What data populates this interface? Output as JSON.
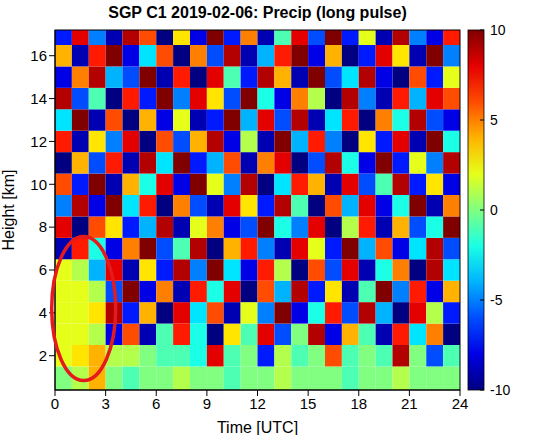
{
  "chart_data": {
    "type": "heatmap",
    "title": "SGP C1 2019-02-06: Precip (long pulse)",
    "x_label": "Time [UTC]",
    "y_label": "Height [km]",
    "xlim": [
      0,
      24
    ],
    "xticks": [
      0,
      3,
      6,
      9,
      12,
      15,
      18,
      21,
      24
    ],
    "ylim": [
      0.4,
      17.2
    ],
    "yticks": [
      2,
      4,
      6,
      8,
      10,
      12,
      14,
      16
    ],
    "cells": {
      "x_edges": [
        0,
        1,
        2,
        3,
        4,
        5,
        6,
        7,
        8,
        9,
        10,
        11,
        12,
        13,
        14,
        15,
        16,
        17,
        18,
        19,
        20,
        21,
        22,
        23,
        24
      ],
      "y_edges": [
        0.4,
        1.5,
        2.5,
        3.5,
        4.5,
        5.5,
        6.5,
        7.5,
        8.5,
        9.5,
        10.5,
        11.5,
        12.5,
        13.5,
        14.5,
        15.5,
        16.5,
        17.2
      ],
      "values": [
        [
          0,
          1,
          4,
          0,
          -1,
          0,
          0,
          1,
          0,
          0,
          -1,
          0,
          0,
          1,
          0,
          0,
          0,
          -1,
          0,
          0,
          1,
          0,
          0,
          0
        ],
        [
          2,
          3,
          4,
          1,
          1,
          0,
          -1,
          -1,
          -2,
          8,
          -1,
          0,
          -7,
          1,
          -1,
          0,
          6,
          -1,
          0,
          -1,
          9,
          0,
          -6,
          -1
        ],
        [
          2,
          2,
          1,
          -8,
          6,
          -9,
          -1,
          7,
          -2,
          -10,
          3,
          -1,
          8,
          -6,
          0,
          9,
          -8,
          4,
          -1,
          -9,
          7,
          -3,
          5,
          -10
        ],
        [
          2,
          2,
          3,
          9,
          -7,
          4,
          -10,
          8,
          -3,
          6,
          -9,
          2,
          -5,
          10,
          -8,
          -2,
          7,
          -6,
          9,
          -4,
          -10,
          8,
          1,
          -7
        ],
        [
          2,
          2,
          1,
          -6,
          10,
          -8,
          5,
          -9,
          7,
          -2,
          8,
          -10,
          6,
          -4,
          9,
          -7,
          3,
          -9,
          -1,
          10,
          -5,
          7,
          -8,
          4
        ],
        [
          2,
          1,
          -4,
          8,
          -9,
          3,
          -7,
          9,
          -5,
          10,
          -3,
          -8,
          7,
          1,
          -10,
          6,
          -6,
          8,
          -9,
          -2,
          5,
          -10,
          9,
          -3
        ],
        [
          -9,
          7,
          -2,
          -8,
          5,
          10,
          -6,
          -1,
          9,
          -10,
          4,
          7,
          -5,
          -9,
          8,
          2,
          -7,
          10,
          -4,
          6,
          -8,
          -3,
          9,
          -6
        ],
        [
          8,
          -10,
          6,
          3,
          -7,
          -4,
          9,
          -9,
          2,
          5,
          -8,
          -6,
          10,
          -2,
          -5,
          8,
          -10,
          1,
          7,
          -9,
          4,
          -6,
          -2,
          10
        ],
        [
          -5,
          9,
          -8,
          10,
          -3,
          7,
          -10,
          5,
          -6,
          -9,
          8,
          3,
          -7,
          9,
          -1,
          -10,
          6,
          -4,
          8,
          -8,
          -2,
          10,
          -9,
          5
        ],
        [
          6,
          -7,
          10,
          -9,
          4,
          -2,
          8,
          -8,
          10,
          2,
          -5,
          9,
          -10,
          -3,
          7,
          4,
          -9,
          8,
          -6,
          -1,
          9,
          -7,
          3,
          -8
        ],
        [
          -10,
          4,
          -6,
          7,
          -9,
          9,
          -3,
          10,
          -7,
          -4,
          6,
          -9,
          5,
          8,
          -10,
          -6,
          9,
          -2,
          -8,
          10,
          -7,
          2,
          -5,
          9
        ],
        [
          7,
          -9,
          3,
          -5,
          8,
          -10,
          6,
          -6,
          4,
          9,
          -8,
          1,
          -9,
          10,
          -4,
          7,
          -5,
          -10,
          3,
          -7,
          8,
          -9,
          10,
          -2
        ],
        [
          -3,
          10,
          -9,
          6,
          -10,
          4,
          -8,
          2,
          -9,
          -7,
          10,
          -4,
          8,
          -6,
          9,
          -9,
          -3,
          7,
          -10,
          5,
          -2,
          9,
          -6,
          -8
        ],
        [
          9,
          -6,
          -1,
          -10,
          7,
          -7,
          10,
          -5,
          8,
          3,
          -6,
          10,
          -2,
          -8,
          5,
          1,
          -10,
          9,
          -5,
          -9,
          7,
          -4,
          8,
          6
        ],
        [
          -8,
          5,
          9,
          -4,
          -6,
          10,
          -9,
          7,
          -10,
          8,
          -1,
          -7,
          9,
          4,
          -9,
          10,
          -6,
          -3,
          9,
          -8,
          -10,
          6,
          -7,
          2
        ],
        [
          4,
          -9,
          7,
          10,
          -8,
          -3,
          6,
          -10,
          5,
          -6,
          9,
          -9,
          -4,
          7,
          10,
          -8,
          4,
          -10,
          -7,
          8,
          3,
          -9,
          10,
          -5
        ],
        [
          -7,
          8,
          -5,
          -9,
          9,
          6,
          -10,
          3,
          -8,
          10,
          -7,
          5,
          -9,
          -1,
          8,
          -6,
          10,
          -7,
          2,
          -9,
          9,
          -5,
          -8,
          7
        ]
      ]
    },
    "colorbar": {
      "range": [
        -10,
        10
      ],
      "ticks": [
        -10,
        -5,
        0,
        5,
        10
      ]
    }
  }
}
